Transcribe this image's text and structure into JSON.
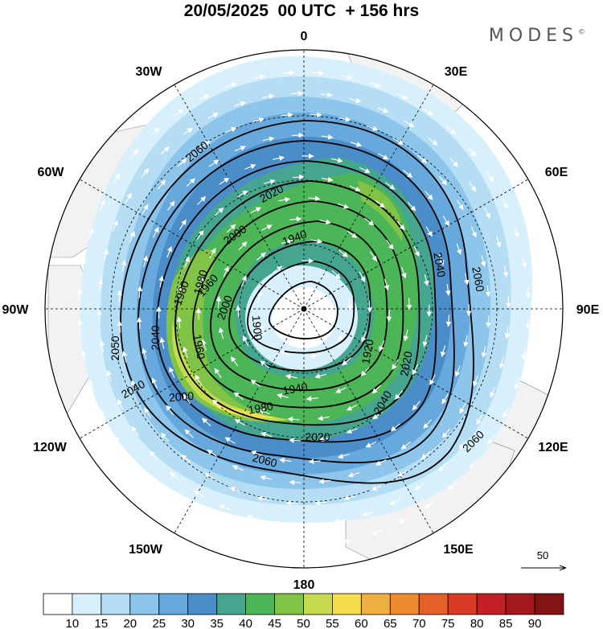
{
  "title": "20/05/2025  00 UTC  + 156 hrs",
  "brand": "MODES",
  "brand_mark": "©",
  "longitude_labels": [
    "0",
    "30E",
    "60E",
    "90E",
    "120E",
    "150E",
    "180",
    "150W",
    "120W",
    "90W",
    "60W",
    "30W"
  ],
  "contour_labels": [
    "2060",
    "2020",
    "2000",
    "1940",
    "1980",
    "1960",
    "1920",
    "1900",
    "2040",
    "2060",
    "2020",
    "1980",
    "1940",
    "2000",
    "2020",
    "2060",
    "2040",
    "2040",
    "2050",
    "1960",
    "1980",
    "2000",
    "2060",
    "2040"
  ],
  "wind_reference": "50",
  "colorbar": {
    "labels": [
      "10",
      "15",
      "20",
      "25",
      "30",
      "35",
      "40",
      "45",
      "50",
      "55",
      "60",
      "65",
      "70",
      "75",
      "80",
      "85",
      "90"
    ],
    "colors": [
      "#ffffff",
      "#d7f0fb",
      "#b5def5",
      "#8ec5ea",
      "#67a9dc",
      "#4b8dc8",
      "#45a58e",
      "#4cb557",
      "#80c347",
      "#c6da4d",
      "#f5dd4e",
      "#f0b03f",
      "#ee8a30",
      "#e6602a",
      "#d93a26",
      "#c22026",
      "#a3191e",
      "#821414"
    ]
  },
  "map": {
    "shading_colors": {
      "light": "#d7f0fb",
      "pale": "#b5def5",
      "mid": "#8ec5ea",
      "blue": "#67a9dc",
      "deep": "#4b8dc8",
      "teal": "#45a58e",
      "green": "#4cb557",
      "lime": "#80c347",
      "yellowgreen": "#c6da4d",
      "yellow": "#f5dd4e"
    },
    "land_color": "#f2f2f2",
    "contour_color": "#000000",
    "vector_color": "#ffffff"
  }
}
